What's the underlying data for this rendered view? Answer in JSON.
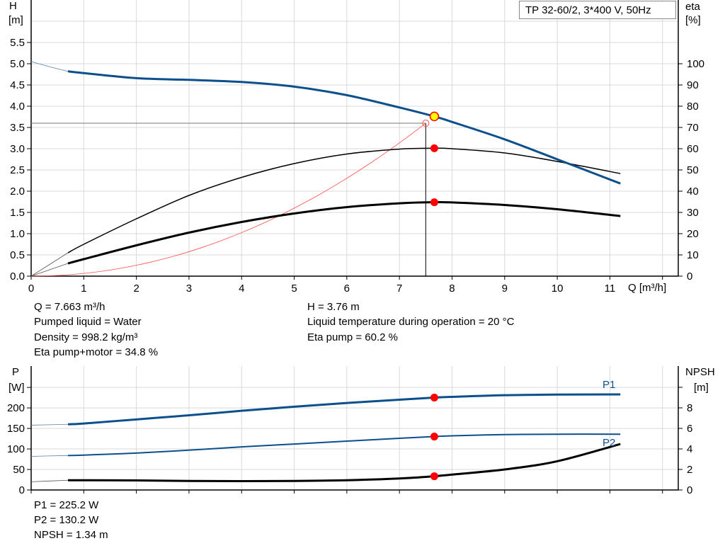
{
  "title": "TP 32-60/2, 3*400 V, 50Hz",
  "colors": {
    "head": "#0b4f8c",
    "eta": "#000000",
    "operating_point": "#ff0000",
    "highlight": "#ffff00",
    "system_curve": "#ff4d4d",
    "grid": "#d9d9d9"
  },
  "chart_data": [
    {
      "type": "line",
      "xlabel": "Q [m³/h]",
      "ylabel_left": [
        "H",
        "[m]"
      ],
      "ylabel_right": [
        "eta",
        "[%]"
      ],
      "xlim": [
        0,
        12.3
      ],
      "ylim_left": [
        0,
        6.5
      ],
      "ylim_right": [
        0,
        130
      ],
      "x_ticks": [
        "0",
        "1",
        "2",
        "3",
        "4",
        "5",
        "6",
        "7",
        "8",
        "9",
        "10",
        "11"
      ],
      "y_ticks_left": [
        "0.0",
        "0.5",
        "1.0",
        "1.5",
        "2.0",
        "2.5",
        "3.0",
        "3.5",
        "4.0",
        "4.5",
        "5.0",
        "5.5"
      ],
      "y_ticks_right": [
        "0",
        "10",
        "20",
        "30",
        "40",
        "50",
        "60",
        "70",
        "80",
        "90",
        "100"
      ],
      "grid": true,
      "series": [
        {
          "key": "H",
          "axis": "left",
          "x": [
            0.7,
            1,
            2,
            3,
            4,
            5,
            6,
            7,
            7.663,
            8,
            9,
            10,
            11.2
          ],
          "y": [
            4.82,
            4.78,
            4.66,
            4.62,
            4.57,
            4.46,
            4.26,
            3.97,
            3.76,
            3.63,
            3.22,
            2.75,
            2.18
          ],
          "extrapolation": {
            "x": [
              0,
              0.35,
              0.7
            ],
            "y": [
              5.05,
              4.93,
              4.82
            ]
          }
        },
        {
          "key": "eta_pump",
          "axis": "right",
          "x": [
            0.7,
            1,
            2,
            3,
            4,
            5,
            6,
            7,
            7.663,
            8,
            9,
            10,
            11.2
          ],
          "y": [
            11,
            15,
            27,
            38,
            46.5,
            53,
            57.5,
            59.8,
            60.2,
            60,
            58,
            54,
            48.3
          ],
          "extrapolation": {
            "x": [
              0,
              0.7
            ],
            "y": [
              0,
              11
            ]
          }
        },
        {
          "key": "eta_pump_motor",
          "axis": "right",
          "x": [
            0.7,
            1,
            2,
            3,
            4,
            5,
            6,
            7,
            7.663,
            8,
            9,
            10,
            11.2
          ],
          "y": [
            6,
            8,
            14.5,
            20.5,
            25.5,
            29.5,
            32.5,
            34.3,
            34.8,
            34.7,
            33.5,
            31.5,
            28.3
          ],
          "extrapolation": {
            "x": [
              0,
              0.7
            ],
            "y": [
              0,
              6
            ]
          }
        },
        {
          "key": "system_curve",
          "axis": "left",
          "type": "parabola",
          "q_end": 7.5,
          "h_end": 3.6
        }
      ],
      "operating_point": {
        "Q": 7.663,
        "H": 3.76,
        "eta_pump": 60.2,
        "eta_pump_motor": 34.8
      },
      "duty_point": {
        "Q": 7.5,
        "H": 3.6
      }
    },
    {
      "type": "line",
      "ylabel_left": [
        "P",
        "[W]"
      ],
      "ylabel_right": [
        "NPSH",
        "[m]"
      ],
      "xlim": [
        0,
        12.3
      ],
      "ylim_left": [
        0,
        302
      ],
      "ylim_right": [
        0,
        12.07
      ],
      "y_ticks_left": [
        "0",
        "50",
        "100",
        "150",
        "200",
        ""
      ],
      "y_ticks_right": [
        "0",
        "2",
        "4",
        "6",
        "8",
        ""
      ],
      "grid": true,
      "series": [
        {
          "name": "P1",
          "axis": "left",
          "x": [
            0.7,
            1,
            2,
            3,
            4,
            5,
            6,
            7,
            7.663,
            8,
            9,
            10,
            11.2
          ],
          "y": [
            160,
            162,
            172,
            182,
            193,
            203,
            212,
            220,
            225.2,
            227,
            231,
            232.5,
            233
          ],
          "extrapolation": {
            "x": [
              0,
              0.7
            ],
            "y": [
              158,
              160
            ]
          }
        },
        {
          "name": "P2",
          "axis": "left",
          "x": [
            0.7,
            1,
            2,
            3,
            4,
            5,
            6,
            7,
            7.663,
            8,
            9,
            10,
            11.2
          ],
          "y": [
            84,
            85,
            90,
            97,
            105,
            112,
            119,
            126,
            130.2,
            132,
            135,
            136,
            136
          ]
        },
        {
          "key": "NPSH",
          "axis": "right",
          "x": [
            0.7,
            1,
            2,
            3,
            4,
            5,
            6,
            7,
            7.663,
            8,
            9,
            10,
            11.2
          ],
          "y": [
            0.95,
            0.95,
            0.93,
            0.88,
            0.86,
            0.88,
            0.95,
            1.12,
            1.34,
            1.5,
            2.0,
            2.8,
            4.48
          ],
          "extrapolation": {
            "x": [
              0,
              0.7
            ],
            "y": [
              0.8,
              0.95
            ]
          }
        }
      ],
      "operating_point": {
        "P1": 225.2,
        "P2": 130.2,
        "NPSH": 1.34
      }
    }
  ],
  "info": {
    "q": "Q = 7.663 m³/h",
    "liquid": "Pumped liquid = Water",
    "density": "Density = 998.2 kg/m³",
    "eta_total": "Eta pump+motor = 34.8 %",
    "h": "H = 3.76 m",
    "temperature": "Liquid temperature during operation = 20 °C",
    "eta_pump": "Eta pump = 60.2 %",
    "p1": "P1 = 225.2 W",
    "p2": "P2 = 130.2 W",
    "npsh": "NPSH = 1.34 m"
  }
}
